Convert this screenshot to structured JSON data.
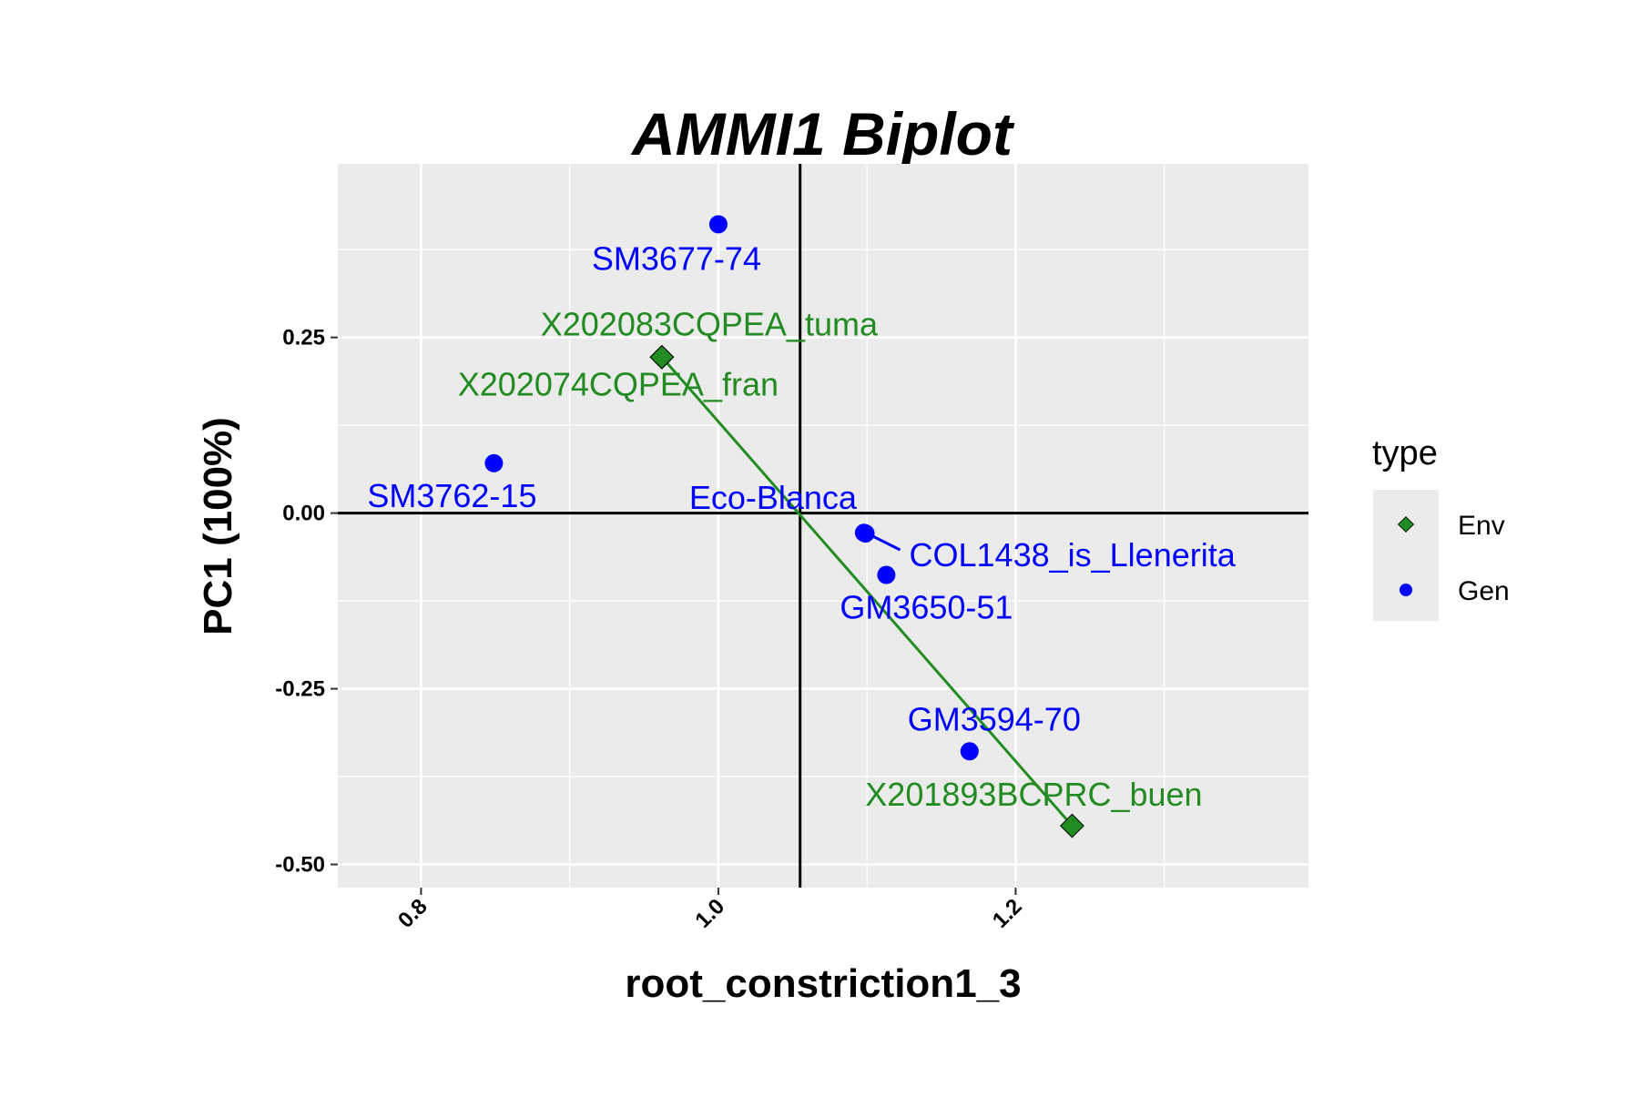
{
  "chart_data": {
    "type": "scatter",
    "title": "AMMI1 Biplot",
    "xlabel": "root_constriction1_3",
    "ylabel": "PC1 (100%)",
    "xlim": [
      0.744,
      1.397
    ],
    "ylim": [
      -0.533,
      0.497
    ],
    "x_ticks": [
      0.8,
      1.0,
      1.2
    ],
    "x_tick_labels": [
      "0.8",
      "1.0",
      "1.2"
    ],
    "y_ticks": [
      0.25,
      0.0,
      -0.25,
      -0.5
    ],
    "y_tick_labels": [
      "0.25",
      "0.00",
      "-0.25",
      "-0.50"
    ],
    "reference_lines": {
      "x": 1.055,
      "y": 0.0
    },
    "grid": true,
    "legend": {
      "title": "type",
      "position": "right",
      "entries": [
        {
          "label": "Env",
          "color": "#228B22",
          "shape": "diamond"
        },
        {
          "label": "Gen",
          "color": "#0000FF",
          "shape": "circle"
        }
      ]
    },
    "colors": {
      "Env": "#228B22",
      "Gen": "#0000FF",
      "panel": "#EBEBEB",
      "grid": "#FFFFFF"
    },
    "series": [
      {
        "name": "Env",
        "points": [
          {
            "label": "X202083CQPEA_tuma",
            "x": 0.962,
            "y": 0.222
          },
          {
            "label": "X202074CQPEA_fran",
            "x": 0.962,
            "y": 0.222
          },
          {
            "label": "X201893BCPRC_buen",
            "x": 1.238,
            "y": -0.445
          }
        ]
      },
      {
        "name": "Gen",
        "points": [
          {
            "label": "SM3677-74",
            "x": 1.0,
            "y": 0.411
          },
          {
            "label": "SM3762-15",
            "x": 0.849,
            "y": 0.071
          },
          {
            "label": "Eco-Blanca",
            "x": 1.098,
            "y": -0.028
          },
          {
            "label": "COL1438_is_Llenerita",
            "x": 1.099,
            "y": -0.029
          },
          {
            "label": "GM3650-51",
            "x": 1.113,
            "y": -0.088
          },
          {
            "label": "GM3594-70",
            "x": 1.169,
            "y": -0.339
          }
        ]
      }
    ],
    "env_line": {
      "from": [
        0.962,
        0.222
      ],
      "to": [
        1.238,
        -0.445
      ]
    }
  }
}
